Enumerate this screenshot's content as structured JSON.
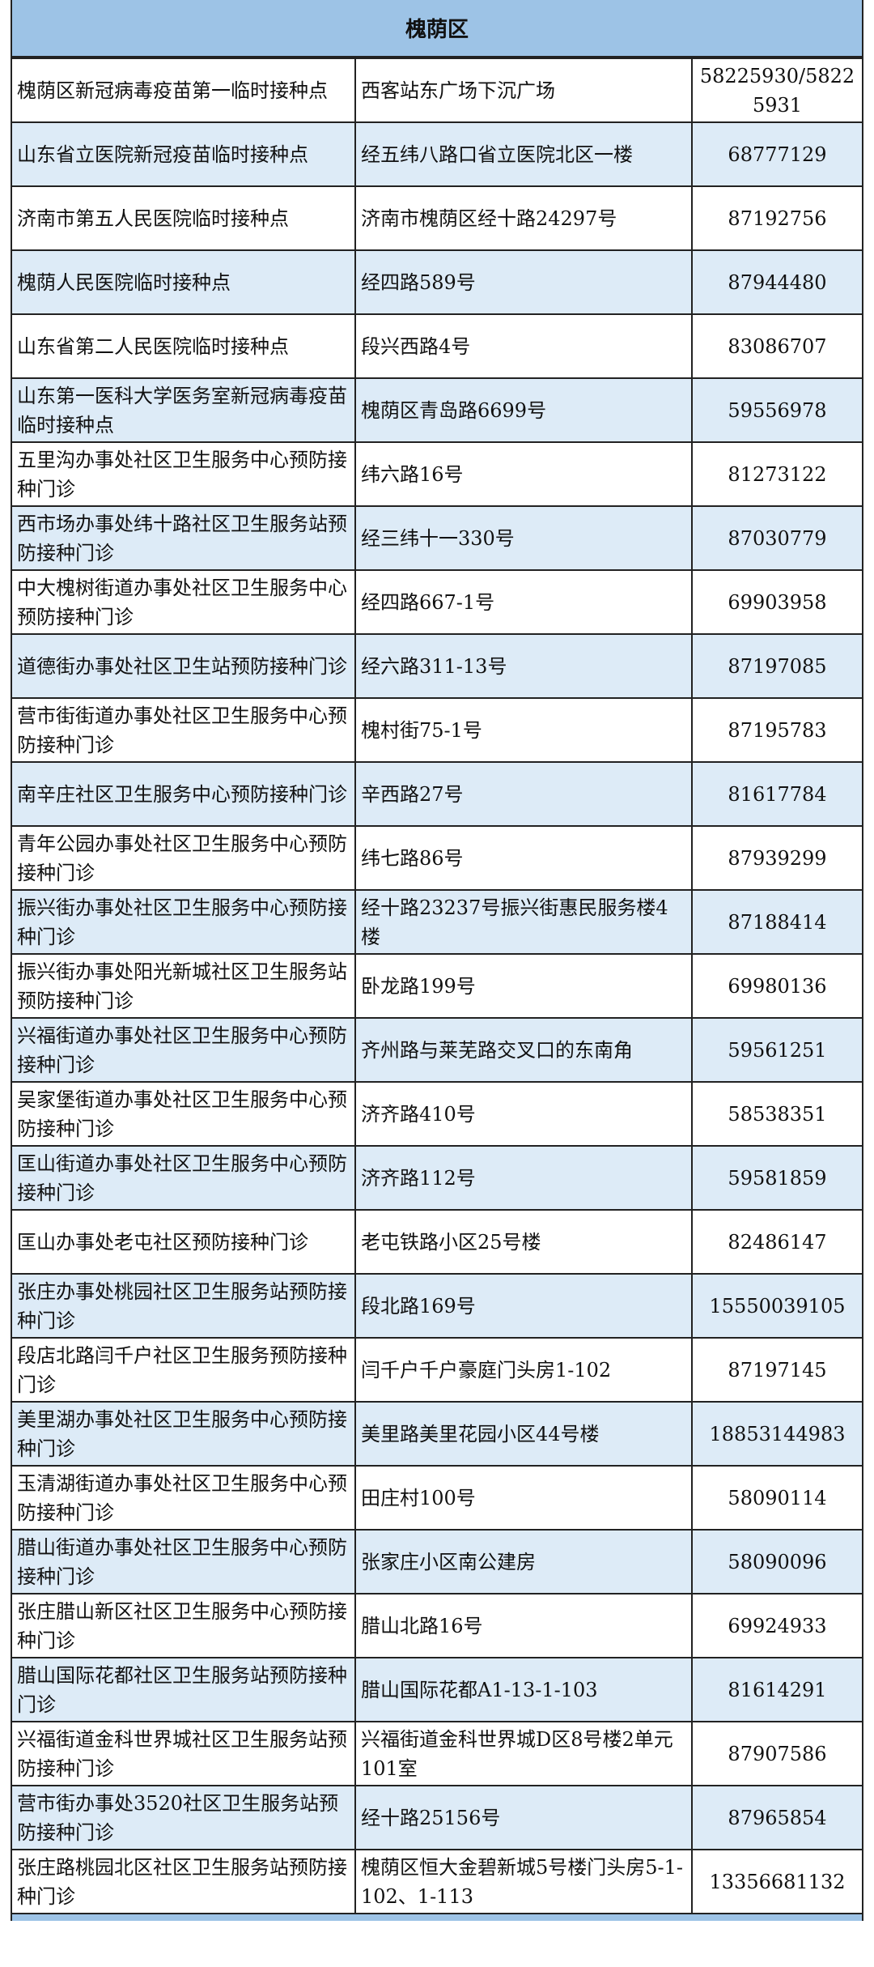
{
  "title": "槐荫区",
  "rows": [
    [
      "槐荫区新冠病毒疫苗第一临时接种点",
      "西客站东广场下沉广场",
      "58225930/58225931"
    ],
    [
      "山东省立医院新冠疫苗临时接种点",
      "经五纬八路口省立医院北区一楼",
      "68777129"
    ],
    [
      "济南市第五人民医院临时接种点",
      "济南市槐荫区经十路24297号",
      "87192756"
    ],
    [
      "槐荫人民医院临时接种点",
      "经四路589号",
      "87944480"
    ],
    [
      "山东省第二人民医院临时接种点",
      "段兴西路4号",
      "83086707"
    ],
    [
      "山东第一医科大学医务室新冠病毒疫苗临时接种点",
      "槐荫区青岛路6699号",
      "59556978"
    ],
    [
      "五里沟办事处社区卫生服务中心预防接种门诊",
      "纬六路16号",
      "81273122"
    ],
    [
      "西市场办事处纬十路社区卫生服务站预防接种门诊",
      "经三纬十一330号",
      "87030779"
    ],
    [
      "中大槐树街道办事处社区卫生服务中心预防接种门诊",
      "经四路667-1号",
      "69903958"
    ],
    [
      "道德街办事处社区卫生站预防接种门诊",
      "经六路311-13号",
      "87197085"
    ],
    [
      "营市街街道办事处社区卫生服务中心预防接种门诊",
      "槐村街75-1号",
      "87195783"
    ],
    [
      "南辛庄社区卫生服务中心预防接种门诊",
      "辛西路27号",
      "81617784"
    ],
    [
      "青年公园办事处社区卫生服务中心预防接种门诊",
      "纬七路86号",
      "87939299"
    ],
    [
      "振兴街办事处社区卫生服务中心预防接种门诊",
      "经十路23237号振兴街惠民服务楼4楼",
      "87188414"
    ],
    [
      "振兴街办事处阳光新城社区卫生服务站预防接种门诊",
      "卧龙路199号",
      "69980136"
    ],
    [
      "兴福街道办事处社区卫生服务中心预防接种门诊",
      "齐州路与莱芜路交叉口的东南角",
      "59561251"
    ],
    [
      "吴家堡街道办事处社区卫生服务中心预防接种门诊",
      "济齐路410号",
      "58538351"
    ],
    [
      "匡山街道办事处社区卫生服务中心预防接种门诊",
      "济齐路112号",
      "59581859"
    ],
    [
      "匡山办事处老屯社区预防接种门诊",
      "老屯铁路小区25号楼",
      "82486147"
    ],
    [
      "张庄办事处桃园社区卫生服务站预防接种门诊",
      "段北路169号",
      "15550039105"
    ],
    [
      "段店北路闫千户社区卫生服务预防接种门诊",
      "闫千户千户豪庭门头房1-102",
      "87197145"
    ],
    [
      "美里湖办事处社区卫生服务中心预防接种门诊",
      "美里路美里花园小区44号楼",
      "18853144983"
    ],
    [
      "玉清湖街道办事处社区卫生服务中心预防接种门诊",
      "田庄村100号",
      "58090114"
    ],
    [
      "腊山街道办事处社区卫生服务中心预防接种门诊",
      "张家庄小区南公建房",
      "58090096"
    ],
    [
      "张庄腊山新区社区卫生服务中心预防接种门诊",
      "腊山北路16号",
      "69924933"
    ],
    [
      "腊山国际花都社区卫生服务站预防接种门诊",
      "腊山国际花都A1-13-1-103",
      "81614291"
    ],
    [
      "兴福街道金科世界城社区卫生服务站预防接种门诊",
      "兴福街道金科世界城D区8号楼2单元101室",
      "87907586"
    ],
    [
      "营市街办事处3520社区卫生服务站预防接种门诊",
      "经十路25156号",
      "87965854"
    ],
    [
      "张庄路桃园北区社区卫生服务站预防接种门诊",
      "槐荫区恒大金碧新城5号楼门头房5-1-102、1-113",
      "13356681132"
    ]
  ],
  "colors": {
    "header": "#9dc3e6",
    "alt_row": "#ddebf7"
  }
}
